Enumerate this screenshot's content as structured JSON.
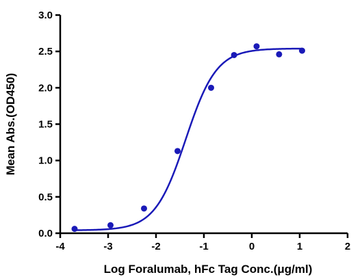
{
  "chart_data": {
    "type": "scatter",
    "title": "",
    "xlabel": "Log Foralumab, hFc Tag Conc.(μg/ml)",
    "ylabel": "Mean Abs.(OD450)",
    "xlim": [
      -4,
      2
    ],
    "ylim": [
      0,
      3.0
    ],
    "x_ticks": [
      -4,
      -3,
      -2,
      -1,
      0,
      1,
      2
    ],
    "y_ticks": [
      0,
      0.5,
      1.0,
      1.5,
      2.0,
      2.5,
      3.0
    ],
    "x_tick_labels": [
      "-4",
      "-3",
      "-2",
      "-1",
      "0",
      "1",
      "2"
    ],
    "y_tick_labels": [
      "0.0",
      "0.5",
      "1.0",
      "1.5",
      "2.0",
      "2.5",
      "3.0"
    ],
    "grid": false,
    "legend": "none",
    "series": [
      {
        "kind": "points",
        "color": "#1a1ab8",
        "x": [
          -3.7,
          -2.95,
          -2.25,
          -1.55,
          -0.85,
          -0.37,
          0.1,
          0.57,
          1.05
        ],
        "y": [
          0.06,
          0.11,
          0.34,
          1.13,
          2.0,
          2.45,
          2.57,
          2.46,
          2.51
        ]
      },
      {
        "kind": "fitted_curve",
        "color": "#1a1ab8",
        "x_range": [
          -3.7,
          1.05
        ],
        "model": "4PL",
        "bottom": 0.04,
        "top": 2.54,
        "logEC50": -1.38,
        "hill_slope": 1.35
      }
    ]
  }
}
